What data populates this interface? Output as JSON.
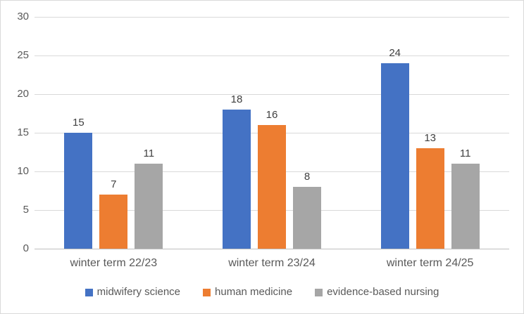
{
  "chart_data": {
    "type": "bar",
    "title": "",
    "categories": [
      "winter term 22/23",
      "winter term 23/24",
      "winter term 24/25"
    ],
    "series": [
      {
        "name": "midwifery science",
        "color": "#4472C4",
        "values": [
          15,
          18,
          24
        ]
      },
      {
        "name": "human medicine",
        "color": "#ED7D31",
        "values": [
          7,
          16,
          13
        ]
      },
      {
        "name": "evidence-based nursing",
        "color": "#A6A6A6",
        "values": [
          11,
          8,
          11
        ]
      }
    ],
    "ylim": [
      0,
      30
    ],
    "yticks": [
      0,
      5,
      10,
      15,
      20,
      25,
      30
    ],
    "xlabel": "",
    "ylabel": "",
    "grid": true,
    "data_labels": true,
    "legend_position": "bottom"
  },
  "colors": {
    "background": "#FFFFFF",
    "border": "#D9D9D9",
    "gridline": "#D9D9D9",
    "axis_line": "#BFBFBF",
    "text": "#595959",
    "data_label": "#404040"
  }
}
